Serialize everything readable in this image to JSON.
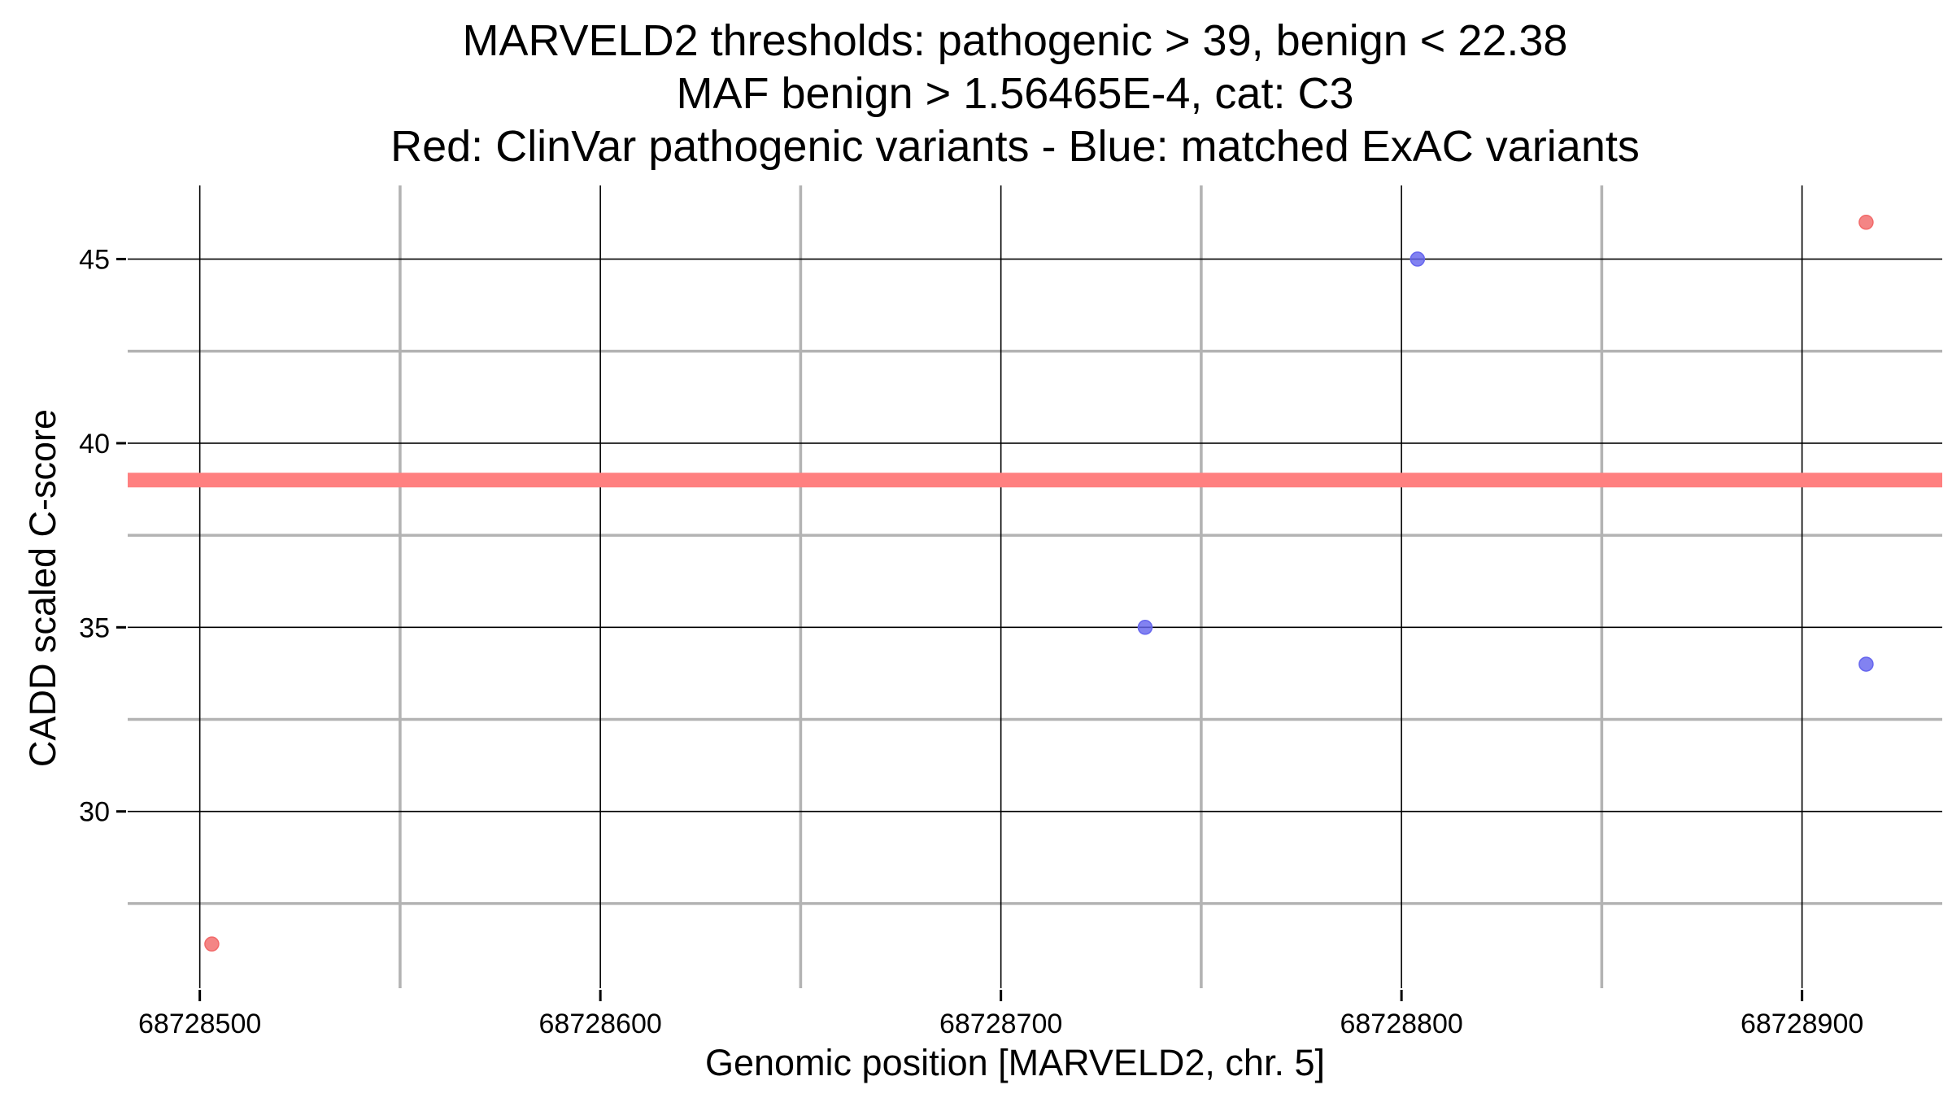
{
  "chart_data": {
    "type": "scatter",
    "title": [
      "MARVELD2 thresholds: pathogenic > 39, benign < 22.38",
      "MAF benign > 1.56465E-4, cat: C3",
      "Red: ClinVar pathogenic variants - Blue: matched ExAC variants"
    ],
    "xlabel": "Genomic position [MARVELD2, chr. 5]",
    "ylabel": "CADD scaled C-score",
    "xlim": [
      68728482,
      68728935
    ],
    "ylim": [
      25.2,
      47.0
    ],
    "x_ticks": [
      68728500,
      68728600,
      68728700,
      68728800,
      68728900
    ],
    "x_tick_labels": [
      "68728500",
      "68728600",
      "68728700",
      "68728800",
      "68728900"
    ],
    "x_minor": [
      68728550,
      68728650,
      68728750,
      68728850
    ],
    "y_ticks": [
      30,
      35,
      40,
      45
    ],
    "y_tick_labels": [
      "30",
      "35",
      "40",
      "45"
    ],
    "y_minor": [
      27.5,
      32.5,
      37.5,
      42.5
    ],
    "grid": true,
    "threshold_line": {
      "y": 39,
      "color": "#ff8080"
    },
    "series": [
      {
        "color": "#f26a6a",
        "points": [
          {
            "x": 68728503,
            "y": 26.4
          },
          {
            "x": 68728916,
            "y": 46.0
          }
        ]
      },
      {
        "color": "#6666ee",
        "points": [
          {
            "x": 68728736,
            "y": 35.0
          },
          {
            "x": 68728804,
            "y": 45.0
          },
          {
            "x": 68728916,
            "y": 34.0
          }
        ]
      }
    ]
  }
}
